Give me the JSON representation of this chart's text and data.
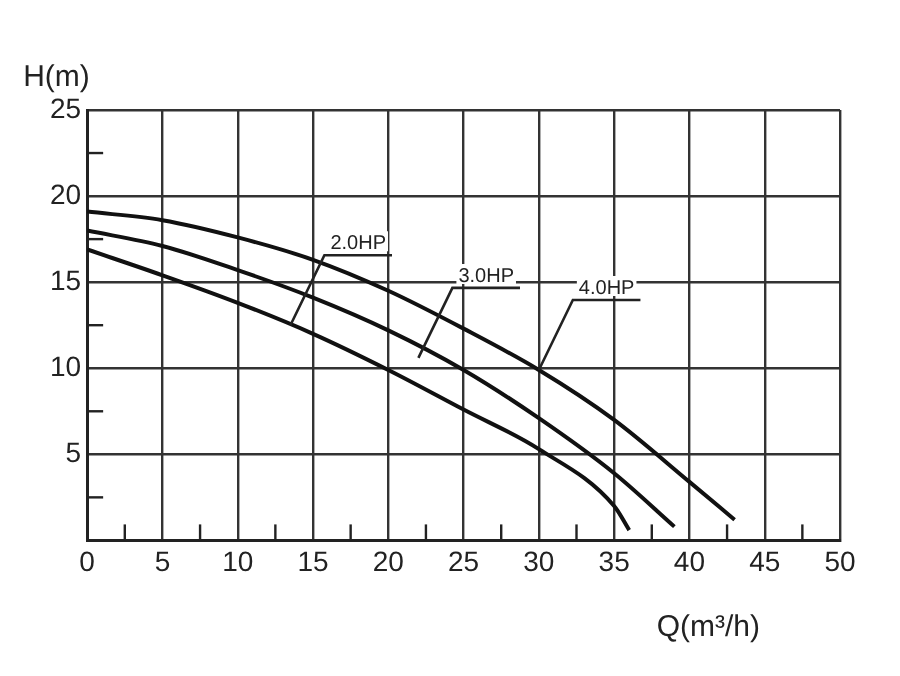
{
  "chart_data": {
    "type": "line",
    "xlabel": "Q(m³/h)",
    "ylabel": "H(m)",
    "xlim": [
      0,
      50
    ],
    "xticks": [
      0,
      {
        "value": 2.5,
        "label": null
      },
      5,
      {
        "value": 7.5,
        "label": null
      },
      10,
      {
        "value": 12.5,
        "label": null
      },
      15,
      {
        "value": 17.5,
        "label": null
      },
      20,
      {
        "value": 22.5,
        "label": null
      },
      25,
      {
        "value": 27.5,
        "label": null
      },
      30,
      {
        "value": 32.5,
        "label": null
      },
      35,
      {
        "value": 37.5,
        "label": null
      },
      40,
      {
        "value": 42.5,
        "label": null
      },
      45,
      {
        "value": 47.5,
        "label": null
      },
      50
    ],
    "ylim": [
      0,
      25
    ],
    "yticks": [
      {
        "value": 2.5,
        "label": null
      },
      5,
      {
        "value": 7.5,
        "label": null
      },
      10,
      {
        "value": 12.5,
        "label": null
      },
      15,
      {
        "value": 17.5,
        "label": null
      },
      20,
      {
        "value": 22.5,
        "label": null
      },
      25
    ],
    "grid": true,
    "marker": "none",
    "line_style": "solid",
    "series": [
      {
        "color": "#111111",
        "x": [
          0,
          5,
          10,
          15,
          20,
          25,
          30,
          35,
          36
        ],
        "values": [
          16.9,
          15.4,
          13.8,
          12.0,
          9.9,
          7.6,
          5.3,
          2.0,
          0.6
        ]
      },
      {
        "color": "#111111",
        "x": [
          0,
          5,
          10,
          15,
          20,
          25,
          30,
          35,
          39
        ],
        "values": [
          18.0,
          17.1,
          15.7,
          14.1,
          12.2,
          9.9,
          7.1,
          3.9,
          0.8
        ]
      },
      {
        "color": "#111111",
        "x": [
          0,
          5,
          10,
          15,
          20,
          25,
          30,
          35,
          40,
          43
        ],
        "values": [
          19.1,
          18.6,
          17.6,
          16.3,
          14.5,
          12.3,
          9.9,
          7.0,
          3.4,
          1.2
        ]
      }
    ],
    "annotations": [
      {
        "text": "2.0HP",
        "x": 13.5,
        "y": 12.5
      },
      {
        "text": "3.0HP",
        "x": 22,
        "y": 10.6
      },
      {
        "text": "4.0HP",
        "x": 30,
        "y": 9.9
      }
    ]
  }
}
